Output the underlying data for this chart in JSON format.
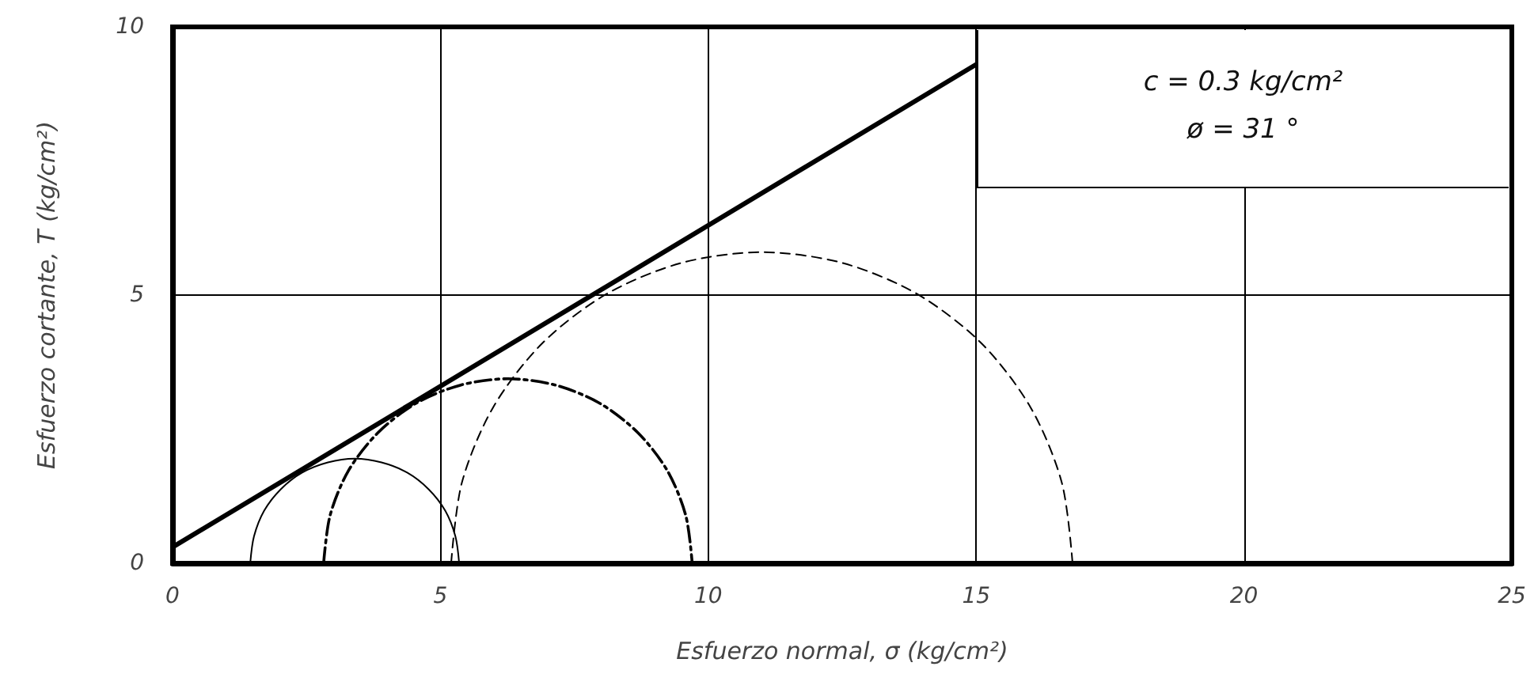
{
  "chart_data": {
    "type": "line",
    "xlabel": "Esfuerzo normal, σ (kg/cm²)",
    "ylabel": "Esfuerzo cortante, T (kg/cm²)",
    "annotations": [
      "c = 0.3 kg/cm²",
      "ø = 31 °"
    ],
    "xlim": [
      0,
      25
    ],
    "xticks": [
      0,
      5,
      10,
      15,
      20,
      25
    ],
    "ylim": [
      0,
      10
    ],
    "yticks": [
      0,
      5,
      10
    ],
    "grid": true,
    "marker": "none",
    "series": [
      {
        "color": "#000000",
        "line_style": "solid",
        "x": [
          1.45,
          1.52,
          1.71,
          2.02,
          2.42,
          2.9,
          3.4,
          3.9,
          4.38,
          4.78,
          5.09,
          5.28,
          5.35
        ],
        "values": [
          0,
          0.5,
          0.98,
          1.38,
          1.69,
          1.88,
          1.95,
          1.88,
          1.69,
          1.38,
          0.98,
          0.5,
          0
        ]
      },
      {
        "color": "#000000",
        "line_style": "dashdot",
        "x": [
          2.82,
          2.94,
          3.28,
          3.83,
          4.54,
          5.37,
          6.26,
          7.15,
          7.98,
          8.69,
          9.24,
          9.58,
          9.7
        ],
        "values": [
          0,
          0.89,
          1.72,
          2.43,
          2.98,
          3.32,
          3.44,
          3.32,
          2.98,
          2.43,
          1.72,
          0.89,
          0
        ]
      },
      {
        "color": "#000000",
        "line_style": "dashed",
        "x": [
          5.2,
          5.4,
          5.98,
          6.9,
          8.1,
          9.5,
          11,
          12.5,
          13.9,
          15.1,
          16.02,
          16.6,
          16.8
        ],
        "values": [
          0,
          1.5,
          2.9,
          4.1,
          5.02,
          5.6,
          5.8,
          5.6,
          5.02,
          4.1,
          2.9,
          1.5,
          0
        ]
      },
      {
        "color": "#000000",
        "line_style": "solid",
        "x": [
          0,
          15
        ],
        "values": [
          0.3,
          9.3
        ]
      }
    ]
  }
}
